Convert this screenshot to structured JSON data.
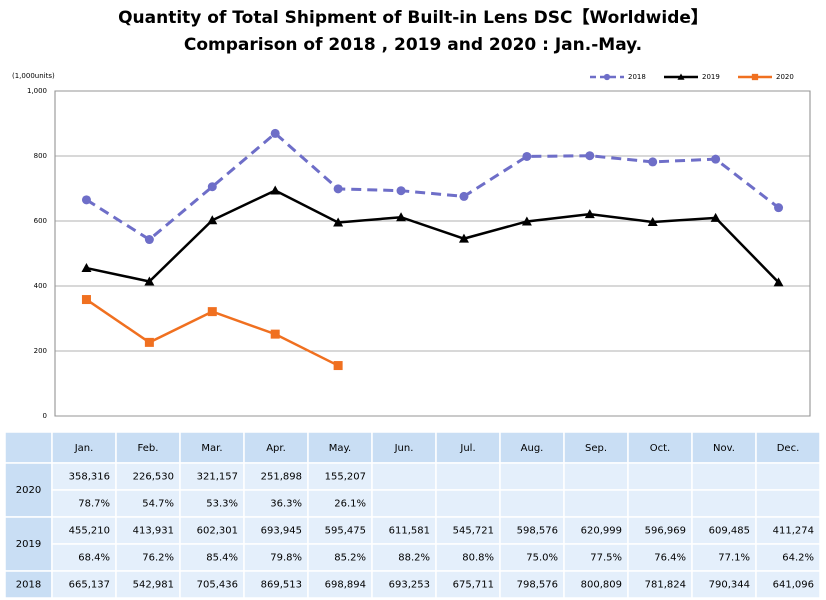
{
  "chart_data": {
    "type": "line",
    "title": "Quantity of Total Shipment of Built-in Lens DSC【Worldwide】",
    "subtitle": "Comparison of 2018 , 2019 and 2020 : Jan.-May.",
    "y_label": "(1,000units)",
    "categories": [
      "Jan.",
      "Feb.",
      "Mar.",
      "Apr.",
      "May.",
      "Jun.",
      "Jul.",
      "Aug.",
      "Sep.",
      "Oct.",
      "Nov.",
      "Dec."
    ],
    "ylim": [
      0,
      1000
    ],
    "yticks": [
      0,
      200,
      400,
      600,
      800,
      {
        "value": 1000,
        "label": "1,000"
      }
    ],
    "grid": true,
    "legend": "top-right",
    "series": [
      {
        "name": "2018",
        "color": "#6e6ec8",
        "marker": "circle",
        "dashed": true,
        "values": [
          665.137,
          542.981,
          705.436,
          869.513,
          698.894,
          693.253,
          675.711,
          798.576,
          800.809,
          781.824,
          790.344,
          641.096
        ],
        "value_labels": [
          "665,137",
          "542,981",
          "705,436",
          "869,513",
          "698,894",
          "693,253",
          "675,711",
          "798,576",
          "800,809",
          "781,824",
          "790,344",
          "641,096"
        ]
      },
      {
        "name": "2019",
        "color": "#000000",
        "marker": "triangle",
        "dashed": false,
        "values": [
          455.21,
          413.931,
          602.301,
          693.945,
          595.475,
          611.581,
          545.721,
          598.576,
          620.999,
          596.969,
          609.485,
          411.274
        ],
        "value_labels": [
          "455,210",
          "413,931",
          "602,301",
          "693,945",
          "595,475",
          "611,581",
          "545,721",
          "598,576",
          "620,999",
          "596,969",
          "609,485",
          "411,274"
        ]
      },
      {
        "name": "2020",
        "color": "#f07020",
        "marker": "square",
        "dashed": false,
        "values": [
          358.316,
          226.53,
          321.157,
          251.898,
          155.207,
          null,
          null,
          null,
          null,
          null,
          null,
          null
        ],
        "value_labels": [
          "358,316",
          "226,530",
          "321,157",
          "251,898",
          "155,207",
          null,
          null,
          null,
          null,
          null,
          null,
          null
        ]
      }
    ]
  },
  "table": {
    "ratio_rows": [
      {
        "series": 2,
        "ratios": [
          "78.7%",
          "54.7%",
          "53.3%",
          "36.3%",
          "26.1%",
          null,
          null,
          null,
          null,
          null,
          null,
          null
        ]
      },
      {
        "series": 1,
        "ratios": [
          "68.4%",
          "76.2%",
          "85.4%",
          "79.8%",
          "85.2%",
          "88.2%",
          "80.8%",
          "75.0%",
          "77.5%",
          "76.4%",
          "77.1%",
          "64.2%"
        ]
      }
    ]
  }
}
